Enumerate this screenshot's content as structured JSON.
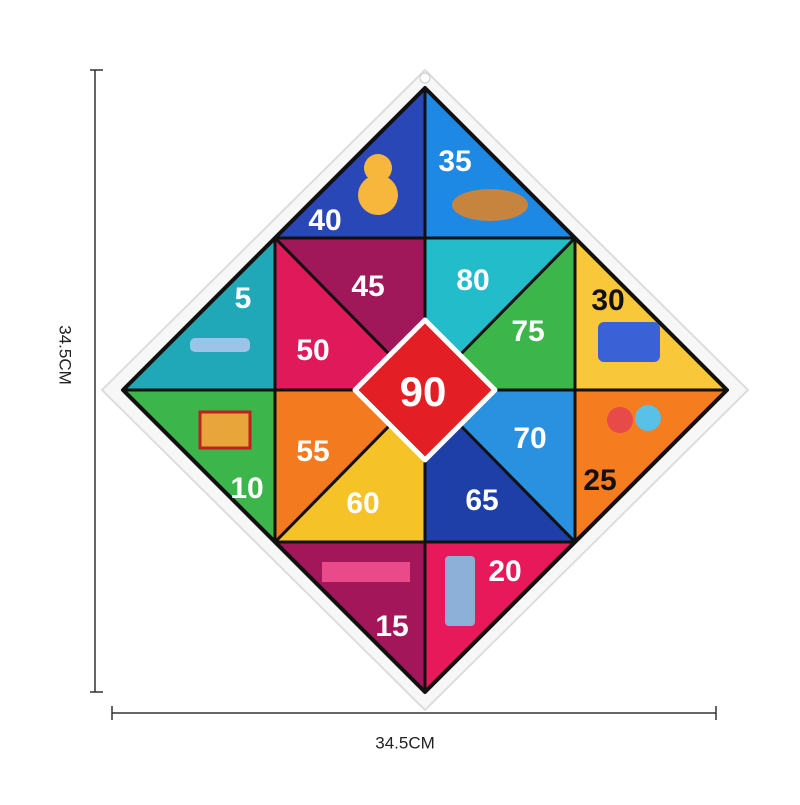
{
  "dimensions": {
    "height": "34.5CM",
    "width": "34.5CM"
  },
  "segments": [
    {
      "label": "40"
    },
    {
      "label": "35"
    },
    {
      "label": "30"
    },
    {
      "label": "25"
    },
    {
      "label": "20"
    },
    {
      "label": "15"
    },
    {
      "label": "10"
    },
    {
      "label": "5"
    },
    {
      "label": "45"
    },
    {
      "label": "80"
    },
    {
      "label": "75"
    },
    {
      "label": "70"
    },
    {
      "label": "65"
    },
    {
      "label": "60"
    },
    {
      "label": "55"
    },
    {
      "label": "50"
    },
    {
      "label": "90"
    }
  ]
}
